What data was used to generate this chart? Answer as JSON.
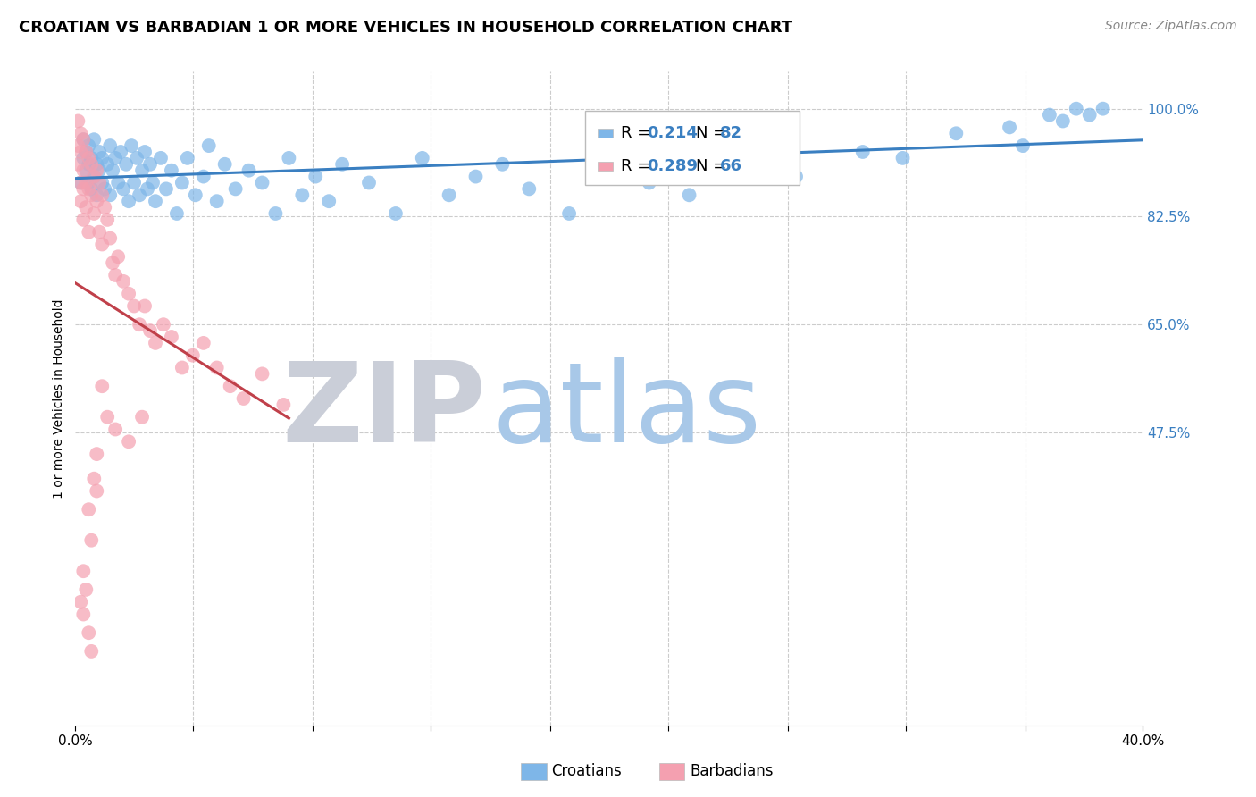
{
  "title": "CROATIAN VS BARBADIAN 1 OR MORE VEHICLES IN HOUSEHOLD CORRELATION CHART",
  "source": "Source: ZipAtlas.com",
  "ylabel": "1 or more Vehicles in Household",
  "croatian_label": "Croatians",
  "barbadian_label": "Barbadians",
  "xlim": [
    0.0,
    0.4
  ],
  "ylim": [
    0.0,
    1.06
  ],
  "yticks": [
    0.475,
    0.65,
    0.825,
    1.0
  ],
  "ytick_labels": [
    "47.5%",
    "65.0%",
    "82.5%",
    "100.0%"
  ],
  "xtick_positions": [
    0.0,
    0.044,
    0.089,
    0.133,
    0.178,
    0.222,
    0.267,
    0.311,
    0.356,
    0.4
  ],
  "xtick_labels": [
    "0.0%",
    "",
    "",
    "",
    "",
    "",
    "",
    "",
    "",
    "40.0%"
  ],
  "croatian_color": "#7EB6E8",
  "barbadian_color": "#F4A0B0",
  "trendline_croatian_color": "#3A7FC1",
  "trendline_barbadian_color": "#C0404A",
  "legend_r_croatian": "0.214",
  "legend_n_croatian": "82",
  "legend_r_barbadian": "0.289",
  "legend_n_barbadian": "66",
  "watermark_zip": "ZIP",
  "watermark_atlas": "atlas",
  "watermark_zip_color": "#CACED8",
  "watermark_atlas_color": "#A8C8E8",
  "background_color": "#FFFFFF",
  "grid_color": "#CCCCCC",
  "title_fontsize": 13,
  "axis_label_fontsize": 10,
  "tick_fontsize": 11,
  "source_fontsize": 10,
  "legend_fontsize": 13,
  "croatian_x": [
    0.002,
    0.003,
    0.003,
    0.004,
    0.004,
    0.005,
    0.005,
    0.005,
    0.006,
    0.006,
    0.007,
    0.007,
    0.008,
    0.008,
    0.009,
    0.009,
    0.01,
    0.01,
    0.011,
    0.012,
    0.013,
    0.013,
    0.014,
    0.015,
    0.016,
    0.017,
    0.018,
    0.019,
    0.02,
    0.021,
    0.022,
    0.023,
    0.024,
    0.025,
    0.026,
    0.027,
    0.028,
    0.029,
    0.03,
    0.032,
    0.034,
    0.036,
    0.038,
    0.04,
    0.042,
    0.045,
    0.048,
    0.05,
    0.053,
    0.056,
    0.06,
    0.065,
    0.07,
    0.075,
    0.08,
    0.085,
    0.09,
    0.095,
    0.1,
    0.11,
    0.12,
    0.13,
    0.14,
    0.15,
    0.16,
    0.17,
    0.185,
    0.2,
    0.215,
    0.23,
    0.25,
    0.27,
    0.295,
    0.31,
    0.33,
    0.35,
    0.365,
    0.375,
    0.355,
    0.37,
    0.38,
    0.385
  ],
  "croatian_y": [
    0.88,
    0.92,
    0.95,
    0.9,
    0.93,
    0.88,
    0.91,
    0.94,
    0.87,
    0.92,
    0.89,
    0.95,
    0.91,
    0.86,
    0.9,
    0.93,
    0.88,
    0.92,
    0.87,
    0.91,
    0.94,
    0.86,
    0.9,
    0.92,
    0.88,
    0.93,
    0.87,
    0.91,
    0.85,
    0.94,
    0.88,
    0.92,
    0.86,
    0.9,
    0.93,
    0.87,
    0.91,
    0.88,
    0.85,
    0.92,
    0.87,
    0.9,
    0.83,
    0.88,
    0.92,
    0.86,
    0.89,
    0.94,
    0.85,
    0.91,
    0.87,
    0.9,
    0.88,
    0.83,
    0.92,
    0.86,
    0.89,
    0.85,
    0.91,
    0.88,
    0.83,
    0.92,
    0.86,
    0.89,
    0.91,
    0.87,
    0.83,
    0.9,
    0.88,
    0.86,
    0.91,
    0.89,
    0.93,
    0.92,
    0.96,
    0.97,
    0.99,
    1.0,
    0.94,
    0.98,
    0.99,
    1.0
  ],
  "barbadian_x": [
    0.001,
    0.001,
    0.001,
    0.002,
    0.002,
    0.002,
    0.002,
    0.003,
    0.003,
    0.003,
    0.003,
    0.004,
    0.004,
    0.004,
    0.005,
    0.005,
    0.005,
    0.006,
    0.006,
    0.007,
    0.007,
    0.008,
    0.008,
    0.009,
    0.009,
    0.01,
    0.01,
    0.011,
    0.012,
    0.013,
    0.014,
    0.015,
    0.016,
    0.018,
    0.02,
    0.022,
    0.024,
    0.026,
    0.028,
    0.03,
    0.033,
    0.036,
    0.04,
    0.044,
    0.048,
    0.053,
    0.058,
    0.063,
    0.07,
    0.078,
    0.015,
    0.02,
    0.025,
    0.008,
    0.01,
    0.012,
    0.005,
    0.006,
    0.003,
    0.002,
    0.003,
    0.004,
    0.005,
    0.006,
    0.007,
    0.008
  ],
  "barbadian_y": [
    0.98,
    0.94,
    0.91,
    0.96,
    0.93,
    0.88,
    0.85,
    0.95,
    0.9,
    0.87,
    0.82,
    0.93,
    0.88,
    0.84,
    0.92,
    0.87,
    0.8,
    0.91,
    0.86,
    0.89,
    0.83,
    0.9,
    0.85,
    0.88,
    0.8,
    0.86,
    0.78,
    0.84,
    0.82,
    0.79,
    0.75,
    0.73,
    0.76,
    0.72,
    0.7,
    0.68,
    0.65,
    0.68,
    0.64,
    0.62,
    0.65,
    0.63,
    0.58,
    0.6,
    0.62,
    0.58,
    0.55,
    0.53,
    0.57,
    0.52,
    0.48,
    0.46,
    0.5,
    0.44,
    0.55,
    0.5,
    0.35,
    0.3,
    0.25,
    0.2,
    0.18,
    0.22,
    0.15,
    0.12,
    0.4,
    0.38
  ]
}
